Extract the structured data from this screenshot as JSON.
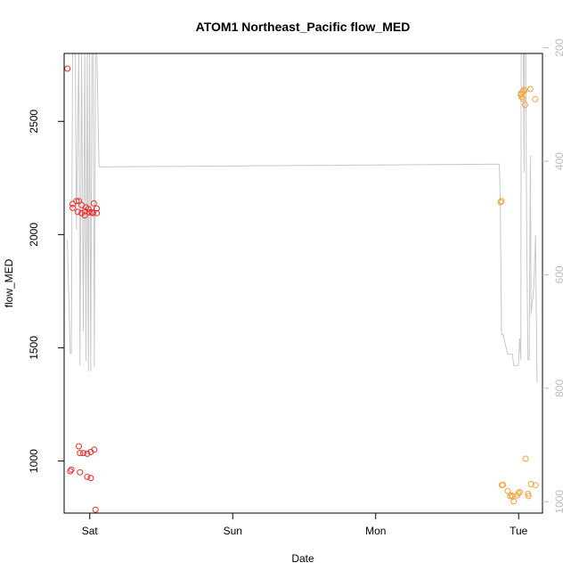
{
  "chart_data": {
    "type": "scatter",
    "title": "ATOM1 Northeast_Pacific flow_MED",
    "xlabel": "Date",
    "ylabel": "flow_MED",
    "x_ticks": [
      "Sat",
      "Sun",
      "Mon",
      "Tue"
    ],
    "xlim": [
      "Fri 19:42",
      "Tue 04:00"
    ],
    "ylim": [
      770,
      2800
    ],
    "y_ticks": [
      1000,
      1500,
      2000,
      2500
    ],
    "y2lim": [
      210,
      1020
    ],
    "y2_ticks": [
      200,
      400,
      600,
      800,
      1000
    ],
    "y2_reversed": true,
    "grid": false,
    "colors": {
      "series_red": "#ee2a2a",
      "series_orange": "#f5a23a",
      "line": "#c8c8c8",
      "axis": "#000000",
      "y2_tick": "#bdbdbd"
    },
    "series": [
      {
        "type": "scatter",
        "color": "#ee2a2a",
        "points": [
          [
            "Fri 20:14",
            2733
          ],
          [
            "Fri 20:43",
            955
          ],
          [
            "Fri 20:55",
            962
          ],
          [
            "Fri 21:07",
            2135
          ],
          [
            "Fri 21:07",
            2118
          ],
          [
            "Fri 21:46",
            2148
          ],
          [
            "Fri 21:58",
            2100
          ],
          [
            "Fri 22:10",
            2148
          ],
          [
            "Fri 22:10",
            1065
          ],
          [
            "Fri 22:22",
            950
          ],
          [
            "Fri 22:22",
            1035
          ],
          [
            "Fri 22:38",
            2130
          ],
          [
            "Fri 22:38",
            2095
          ],
          [
            "Fri 22:55",
            1035
          ],
          [
            "Fri 23:10",
            2103
          ],
          [
            "Fri 23:10",
            2085
          ],
          [
            "Fri 23:22",
            2120
          ],
          [
            "Fri 23:34",
            930
          ],
          [
            "Fri 23:34",
            1032
          ],
          [
            "Fri 23:46",
            2113
          ],
          [
            "Fri 23:58",
            2098
          ],
          [
            "Sat 00:10",
            1040
          ],
          [
            "Sat 00:10",
            925
          ],
          [
            "Sat 00:22",
            2098
          ],
          [
            "Sat 00:34",
            2095
          ],
          [
            "Sat 00:41",
            2138
          ],
          [
            "Sat 00:46",
            1050
          ],
          [
            "Sat 00:58",
            785
          ],
          [
            "Sat 01:10",
            2115
          ],
          [
            "Sat 01:10",
            2095
          ]
        ]
      },
      {
        "type": "scatter",
        "color": "#f5a23a",
        "points": [
          [
            "Mon 20:58",
            2143
          ],
          [
            "Mon 21:07",
            2148
          ],
          [
            "Mon 21:10",
            893
          ],
          [
            "Mon 21:22",
            895
          ],
          [
            "Mon 22:10",
            868
          ],
          [
            "Mon 22:34",
            845
          ],
          [
            "Mon 22:50",
            848
          ],
          [
            "Mon 22:58",
            842
          ],
          [
            "Mon 23:10",
            822
          ],
          [
            "Mon 23:46",
            848
          ],
          [
            "Mon 23:58",
            857
          ],
          [
            "Tue 00:10",
            862
          ],
          [
            "Tue 00:22",
            2618
          ],
          [
            "Tue 00:26",
            2623
          ],
          [
            "Tue 00:31",
            2608
          ],
          [
            "Tue 00:38",
            2630
          ],
          [
            "Tue 00:43",
            2600
          ],
          [
            "Tue 00:55",
            2638
          ],
          [
            "Tue 00:58",
            2635
          ],
          [
            "Tue 01:05",
            2573
          ],
          [
            "Tue 01:10",
            1010
          ],
          [
            "Tue 01:34",
            855
          ],
          [
            "Tue 01:40",
            845
          ],
          [
            "Tue 01:58",
            2643
          ],
          [
            "Tue 02:05",
            898
          ],
          [
            "Tue 02:46",
            2598
          ],
          [
            "Tue 02:50",
            893
          ]
        ]
      }
    ],
    "secondary_series": {
      "type": "line",
      "axis": "right",
      "color": "#c8c8c8",
      "points": [
        [
          "Fri 20:14",
          538
        ],
        [
          "Fri 20:43",
          738
        ],
        [
          "Fri 20:55",
          738
        ],
        [
          "Fri 21:07",
          200
        ],
        [
          "Fri 21:22",
          200
        ],
        [
          "Fri 21:34",
          200
        ],
        [
          "Fri 21:46",
          520
        ],
        [
          "Fri 22:10",
          200
        ],
        [
          "Fri 22:22",
          760
        ],
        [
          "Fri 22:38",
          200
        ],
        [
          "Fri 22:55",
          700
        ],
        [
          "Fri 23:10",
          200
        ],
        [
          "Fri 23:22",
          752
        ],
        [
          "Fri 23:34",
          200
        ],
        [
          "Fri 23:46",
          770
        ],
        [
          "Fri 23:58",
          200
        ],
        [
          "Sat 00:10",
          770
        ],
        [
          "Sat 00:22",
          200
        ],
        [
          "Sat 00:34",
          200
        ],
        [
          "Sat 00:46",
          762
        ],
        [
          "Sat 00:58",
          200
        ],
        [
          "Sat 01:10",
          200
        ],
        [
          "Sat 01:34",
          410
        ],
        [
          "Mon 20:46",
          405
        ],
        [
          "Mon 20:55",
          467
        ],
        [
          "Mon 21:07",
          705
        ],
        [
          "Mon 21:22",
          705
        ],
        [
          "Mon 22:10",
          740
        ],
        [
          "Mon 22:58",
          740
        ],
        [
          "Mon 23:10",
          760
        ],
        [
          "Mon 23:58",
          760
        ],
        [
          "Tue 00:10",
          712
        ],
        [
          "Tue 00:22",
          750
        ],
        [
          "Tue 00:26",
          200
        ],
        [
          "Tue 00:43",
          200
        ],
        [
          "Tue 00:46",
          200
        ],
        [
          "Tue 00:55",
          420
        ],
        [
          "Tue 00:58",
          200
        ],
        [
          "Tue 01:10",
          200
        ],
        [
          "Tue 01:22",
          550
        ],
        [
          "Tue 01:34",
          750
        ],
        [
          "Tue 01:46",
          750
        ],
        [
          "Tue 01:58",
          390
        ],
        [
          "Tue 02:05",
          670
        ],
        [
          "Tue 02:34",
          620
        ],
        [
          "Tue 02:50",
          530
        ],
        [
          "Tue 03:05",
          790
        ]
      ]
    }
  }
}
